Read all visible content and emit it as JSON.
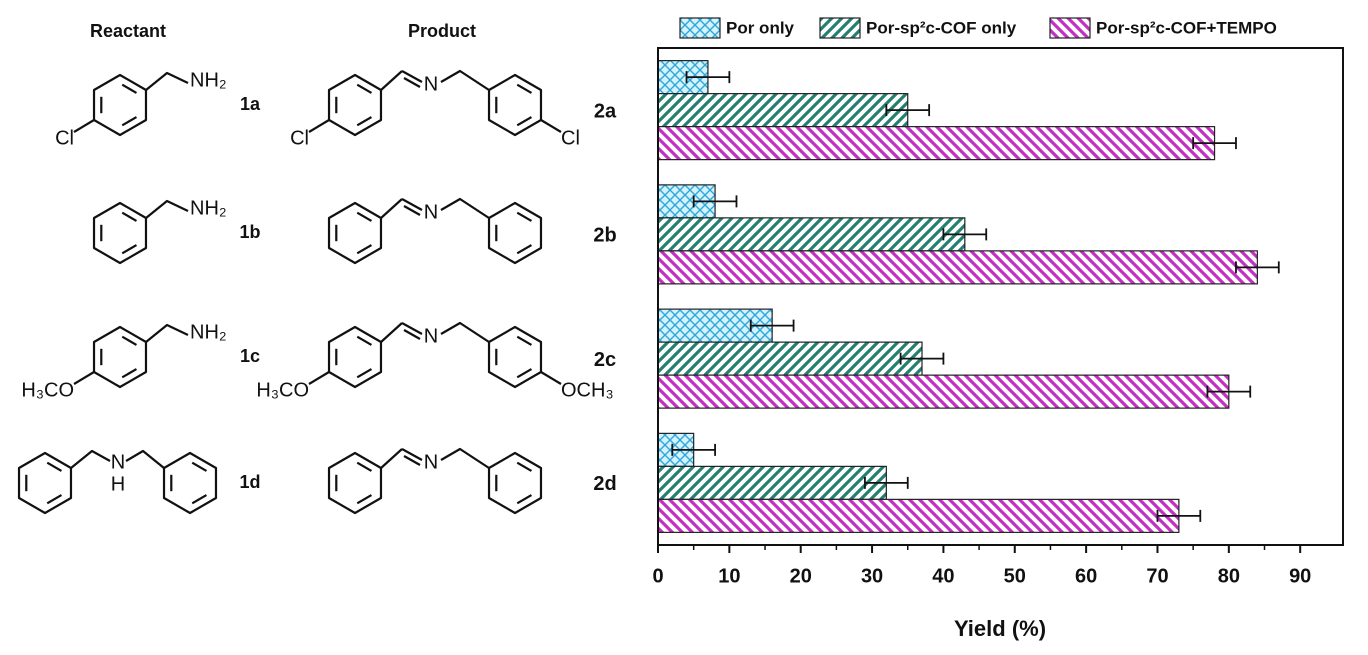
{
  "chart_data": {
    "type": "barh",
    "categories": [
      "2a",
      "2b",
      "2c",
      "2d"
    ],
    "series": [
      {
        "name": "Por only",
        "color": "#2fa8d8",
        "hatch": "cross",
        "values": [
          7,
          8,
          16,
          5
        ],
        "errors": [
          3,
          3,
          3,
          3
        ]
      },
      {
        "name": "Por-sp²c-COF only",
        "color": "#237f70",
        "hatch": "forward",
        "values": [
          35,
          43,
          37,
          32
        ],
        "errors": [
          3,
          3,
          3,
          3
        ]
      },
      {
        "name": "Por-sp²c-COF+TEMPO",
        "color": "#c42ec4",
        "hatch": "back",
        "values": [
          78,
          84,
          80,
          73
        ],
        "errors": [
          3,
          3,
          3,
          3
        ]
      }
    ],
    "x_label": "Yield (%)",
    "xlim": [
      0,
      96
    ],
    "xticks": [
      0,
      10,
      20,
      30,
      40,
      50,
      60,
      70,
      80,
      90
    ],
    "legend": "top"
  },
  "scheme": {
    "headers": [
      "Reactant",
      "Product"
    ],
    "rows": [
      {
        "reactant_id": "1a",
        "reactant_atoms": [
          "NH₂",
          "Cl"
        ],
        "product_atoms": [
          "N",
          "Cl",
          "Cl"
        ]
      },
      {
        "reactant_id": "1b",
        "reactant_atoms": [
          "NH₂"
        ],
        "product_atoms": [
          "N"
        ]
      },
      {
        "reactant_id": "1c",
        "reactant_atoms": [
          "NH₂",
          "H₃CO"
        ],
        "product_atoms": [
          "N",
          "H₃CO",
          "OCH₃"
        ]
      },
      {
        "reactant_id": "1d",
        "reactant_atoms": [
          "N",
          "H"
        ],
        "product_atoms": [
          "N"
        ]
      }
    ]
  }
}
